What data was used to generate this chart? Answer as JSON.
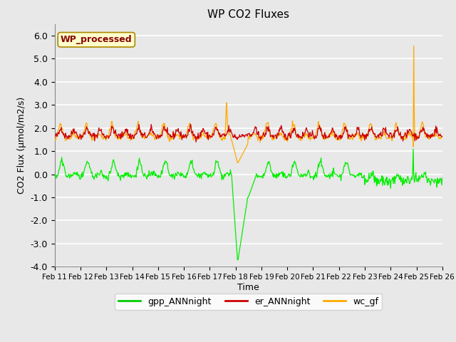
{
  "title": "WP CO2 Fluxes",
  "xlabel": "Time",
  "ylabel": "CO2 Flux (μmol/m2/s)",
  "ylim": [
    -4.0,
    6.5
  ],
  "yticks": [
    -4.0,
    -3.0,
    -2.0,
    -1.0,
    0.0,
    1.0,
    2.0,
    3.0,
    4.0,
    5.0,
    6.0
  ],
  "xtick_labels": [
    "Feb 11",
    "Feb 12",
    "Feb 13",
    "Feb 14",
    "Feb 15",
    "Feb 16",
    "Feb 17",
    "Feb 18",
    "Feb 19",
    "Feb 20",
    "Feb 21",
    "Feb 22",
    "Feb 23",
    "Feb 24",
    "Feb 25",
    "Feb 26"
  ],
  "legend_labels": [
    "gpp_ANNnight",
    "er_ANNnight",
    "wc_gf"
  ],
  "legend_colors": [
    "#00cc00",
    "#cc0000",
    "#ffaa00"
  ],
  "watermark_text": "WP_processed",
  "watermark_bg": "#ffffcc",
  "watermark_border": "#aa8800",
  "watermark_text_color": "#880000",
  "plot_bg_color": "#e8e8e8",
  "fig_bg_color": "#e8e8e8",
  "grid_color": "#ffffff",
  "color_gpp": "#00ee00",
  "color_er": "#cc0000",
  "color_wc": "#ffaa00",
  "n_points": 720
}
